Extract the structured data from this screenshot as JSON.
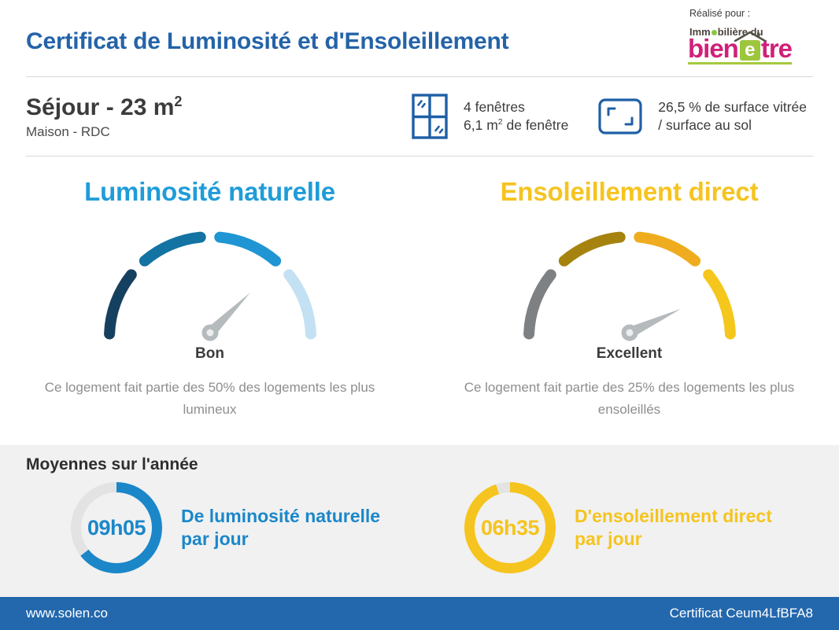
{
  "palette": {
    "title_blue": "#2463a8",
    "footer_blue": "#2368ad",
    "icon_blue": "#1f5fa6",
    "section_bg": "#f1f1f1",
    "text_dark": "#3b3b3b",
    "text_gray": "#8e8e8e",
    "logo_pink": "#d02079",
    "logo_green": "#9dc63c"
  },
  "header": {
    "realise_pour": "Réalisé pour :",
    "title": "Certificat de Luminosité et d'Ensoleillement",
    "logo": {
      "top_pre": "Imm",
      "top_post": "bilière du",
      "main_pre": "bien",
      "house_letter": "e",
      "main_post": "tre"
    }
  },
  "room": {
    "title_main": "Séjour - 23 m",
    "title_sup": "2",
    "subtitle": "Maison - RDC",
    "stats": {
      "windows": {
        "line1": "4 fenêtres",
        "line2_pre": "6,1 m",
        "line2_sup": "2",
        "line2_post": " de fenêtre"
      },
      "glazing": {
        "line1": "26,5 % de surface vitrée",
        "line2": "/ surface au sol"
      }
    }
  },
  "averages": {
    "heading": "Moyennes sur l'année",
    "rings": [
      {
        "value": "09h05",
        "label_line1": "De luminosité naturelle",
        "label_line2": "par jour",
        "color": "#1b87c9",
        "track_color": "#e3e3e3",
        "filled_deg": 232
      },
      {
        "value": "06h35",
        "label_line1": "D'ensoleillement direct",
        "label_line2": "par jour",
        "color": "#f5c41e",
        "track_color": "#e3e3e3",
        "filled_deg": 342
      }
    ]
  },
  "footer": {
    "left": "www.solen.co",
    "right": "Certificat Ceum4LfBFA8"
  },
  "chart_data": [
    {
      "type": "gauge",
      "title": "Luminosité naturelle",
      "title_color": "#1f9cd9",
      "reading": "Bon",
      "description": "Ce logement fait partie des 50% des logements les plus lumineux",
      "needle_angle_deg": 45,
      "needle_color": "#b5babd",
      "segment_colors": [
        "#16405f",
        "#1373a3",
        "#2095d3",
        "#c3e1f2"
      ]
    },
    {
      "type": "gauge",
      "title": "Ensoleillement direct",
      "title_color": "#f6c420",
      "reading": "Excellent",
      "description": "Ce logement fait partie des 25% des logements les plus ensoleillés",
      "needle_angle_deg": 25,
      "needle_color": "#b5babd",
      "segment_colors": [
        "#7e8183",
        "#a5830e",
        "#eeac1e",
        "#f5c71d"
      ]
    },
    {
      "type": "ring",
      "value": "09h05",
      "label": "De luminosité naturelle par jour",
      "filled_fraction": 0.64,
      "color": "#1b87c9"
    },
    {
      "type": "ring",
      "value": "06h35",
      "label": "D'ensoleillement direct par jour",
      "filled_fraction": 0.95,
      "color": "#f5c41e"
    }
  ]
}
